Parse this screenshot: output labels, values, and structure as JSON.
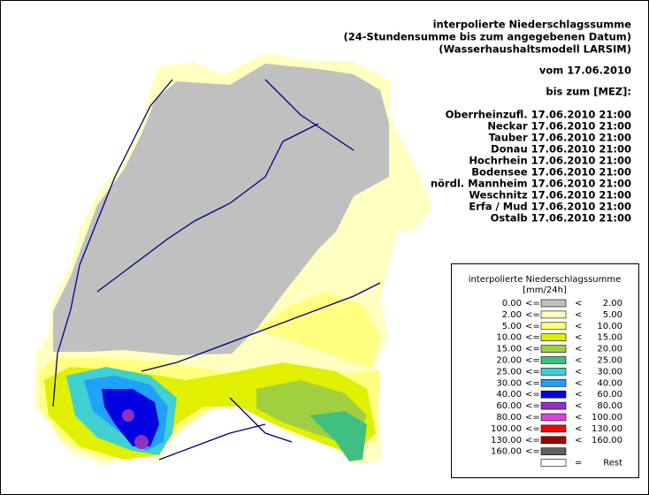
{
  "header": {
    "title": "interpolierte Niederschlagssumme",
    "subtitle": "(24-Stundensumme bis zum angegebenen Datum)",
    "model": "(Wasserhaushaltsmodell LARSIM)",
    "date": "vom 17.06.2010",
    "until": "bis zum [MEZ]:"
  },
  "regions": [
    "Oberrheinzufl. 17.06.2010 21:00",
    "Neckar 17.06.2010 21:00",
    "Tauber 17.06.2010 21:00",
    "Donau 17.06.2010 21:00",
    "Hochrhein 17.06.2010 21:00",
    "Bodensee 17.06.2010 21:00",
    "nördl. Mannheim 17.06.2010 21:00",
    "Weschnitz 17.06.2010 21:00",
    "Erfa / Mud 17.06.2010 21:00",
    "Ostalb 17.06.2010 21:00"
  ],
  "legend": {
    "title": "interpolierte Niederschlagssumme",
    "unit": "[mm/24h]",
    "rows": [
      {
        "from": "0.00",
        "op1": "<=",
        "color": "#c0c0c0",
        "op2": "<",
        "to": "2.00"
      },
      {
        "from": "2.00",
        "op1": "<=",
        "color": "#ffffc0",
        "op2": "<",
        "to": "5.00"
      },
      {
        "from": "5.00",
        "op1": "<=",
        "color": "#ffff80",
        "op2": "<",
        "to": "10.00"
      },
      {
        "from": "10.00",
        "op1": "<=",
        "color": "#e0f000",
        "op2": "<",
        "to": "15.00"
      },
      {
        "from": "15.00",
        "op1": "<=",
        "color": "#a0d040",
        "op2": "<",
        "to": "20.00"
      },
      {
        "from": "20.00",
        "op1": "<=",
        "color": "#40c080",
        "op2": "<",
        "to": "25.00"
      },
      {
        "from": "25.00",
        "op1": "<=",
        "color": "#40d0d0",
        "op2": "<",
        "to": "30.00"
      },
      {
        "from": "30.00",
        "op1": "<=",
        "color": "#20a0ff",
        "op2": "<",
        "to": "40.00"
      },
      {
        "from": "40.00",
        "op1": "<=",
        "color": "#0000e0",
        "op2": "<",
        "to": "60.00"
      },
      {
        "from": "60.00",
        "op1": "<=",
        "color": "#9030c0",
        "op2": "<",
        "to": "80.00"
      },
      {
        "from": "80.00",
        "op1": "<=",
        "color": "#e040e0",
        "op2": "<",
        "to": "100.00"
      },
      {
        "from": "100.00",
        "op1": "<=",
        "color": "#ff0000",
        "op2": "<",
        "to": "130.00"
      },
      {
        "from": "130.00",
        "op1": "<=",
        "color": "#a00000",
        "op2": "<",
        "to": "160.00"
      },
      {
        "from": "160.00",
        "op1": "<=",
        "color": "#606060"
      },
      {
        "color": "#ffffff",
        "op2": "=",
        "to": "Rest"
      }
    ]
  }
}
